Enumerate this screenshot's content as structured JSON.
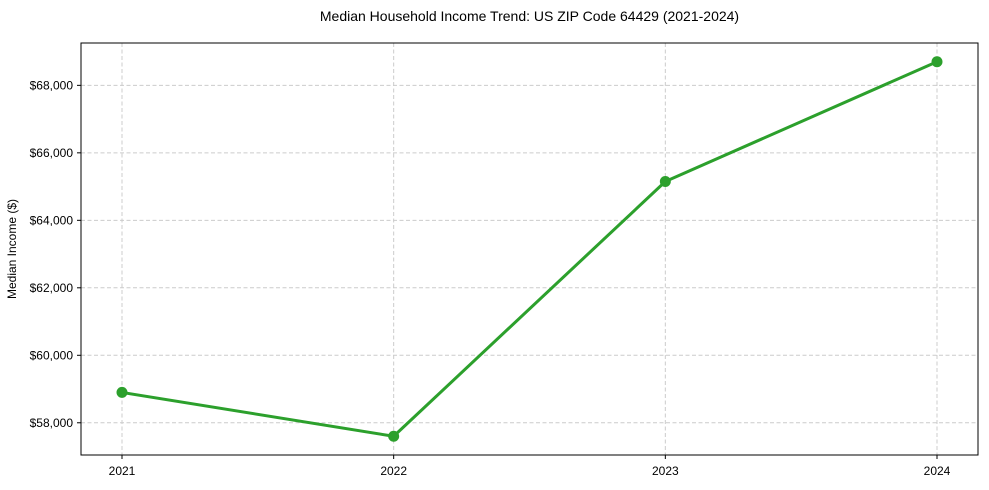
{
  "page": {
    "background": "#ffffff"
  },
  "chart_data": {
    "type": "line",
    "title": "Median Household Income Trend: US ZIP Code 64429 (2021-2024)",
    "xlabel": "",
    "ylabel": "Median Income ($)",
    "categories": [
      "2021",
      "2022",
      "2023",
      "2024"
    ],
    "series": [
      {
        "color": "#2ca02c",
        "marker": "circle",
        "values": [
          58900,
          57600,
          65150,
          68700
        ]
      }
    ],
    "y_ticks": [
      58000,
      60000,
      62000,
      64000,
      66000,
      68000
    ],
    "y_tick_labels": [
      "$58,000",
      "$60,000",
      "$62,000",
      "$64,000",
      "$66,000",
      "$68,000"
    ],
    "ylim": [
      57045,
      69255
    ],
    "grid": true,
    "grid_color": "#cccccc",
    "grid_style": "dashed",
    "legend_position": "none",
    "line_width": 3,
    "marker_radius": 5.5
  }
}
